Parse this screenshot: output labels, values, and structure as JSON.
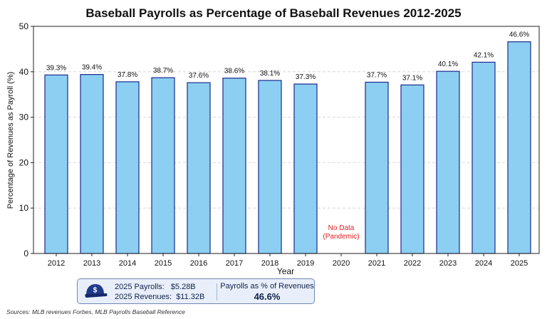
{
  "chart_data": {
    "type": "bar",
    "title": "Baseball Payrolls as Percentage of Baseball Revenues 2012-2025",
    "xlabel": "Year",
    "ylabel": "Percentage of Revenues as Payroll (%)",
    "ylim": [
      0,
      50
    ],
    "yticks": [
      "0",
      "10",
      "20",
      "30",
      "40",
      "50"
    ],
    "grid": "horizontal dashed",
    "categories": [
      "2012",
      "2013",
      "2014",
      "2015",
      "2016",
      "2017",
      "2018",
      "2019",
      "2020",
      "2021",
      "2022",
      "2023",
      "2024",
      "2025"
    ],
    "values": [
      39.3,
      39.4,
      37.8,
      38.7,
      37.6,
      38.6,
      38.1,
      37.3,
      null,
      37.7,
      37.1,
      40.1,
      42.1,
      46.6
    ],
    "data_labels": [
      "39.3%",
      "39.4%",
      "37.8%",
      "38.7%",
      "37.6%",
      "38.6%",
      "38.1%",
      "37.3%",
      "",
      "37.7%",
      "37.1%",
      "40.1%",
      "42.1%",
      "46.6%"
    ],
    "annotation": {
      "category": "2020",
      "lines": [
        "No Data",
        "(Pandemic)"
      ],
      "color": "#e02020"
    },
    "bar_color": "#8ccff2",
    "bar_edge_color": "#1c2a8c"
  },
  "info_box": {
    "icon": "baseball-cap-dollar-icon",
    "payrolls_label": "2025 Payrolls:",
    "payrolls_value": "$5.28B",
    "revenues_label": "2025 Revenues:",
    "revenues_value": "$11.32B",
    "ratio_label": "Payrolls as % of Revenues",
    "ratio_value": "46.6%"
  },
  "sources": "Sources: MLB revenues Forbes, MLB Payrolls Baseball Reference"
}
